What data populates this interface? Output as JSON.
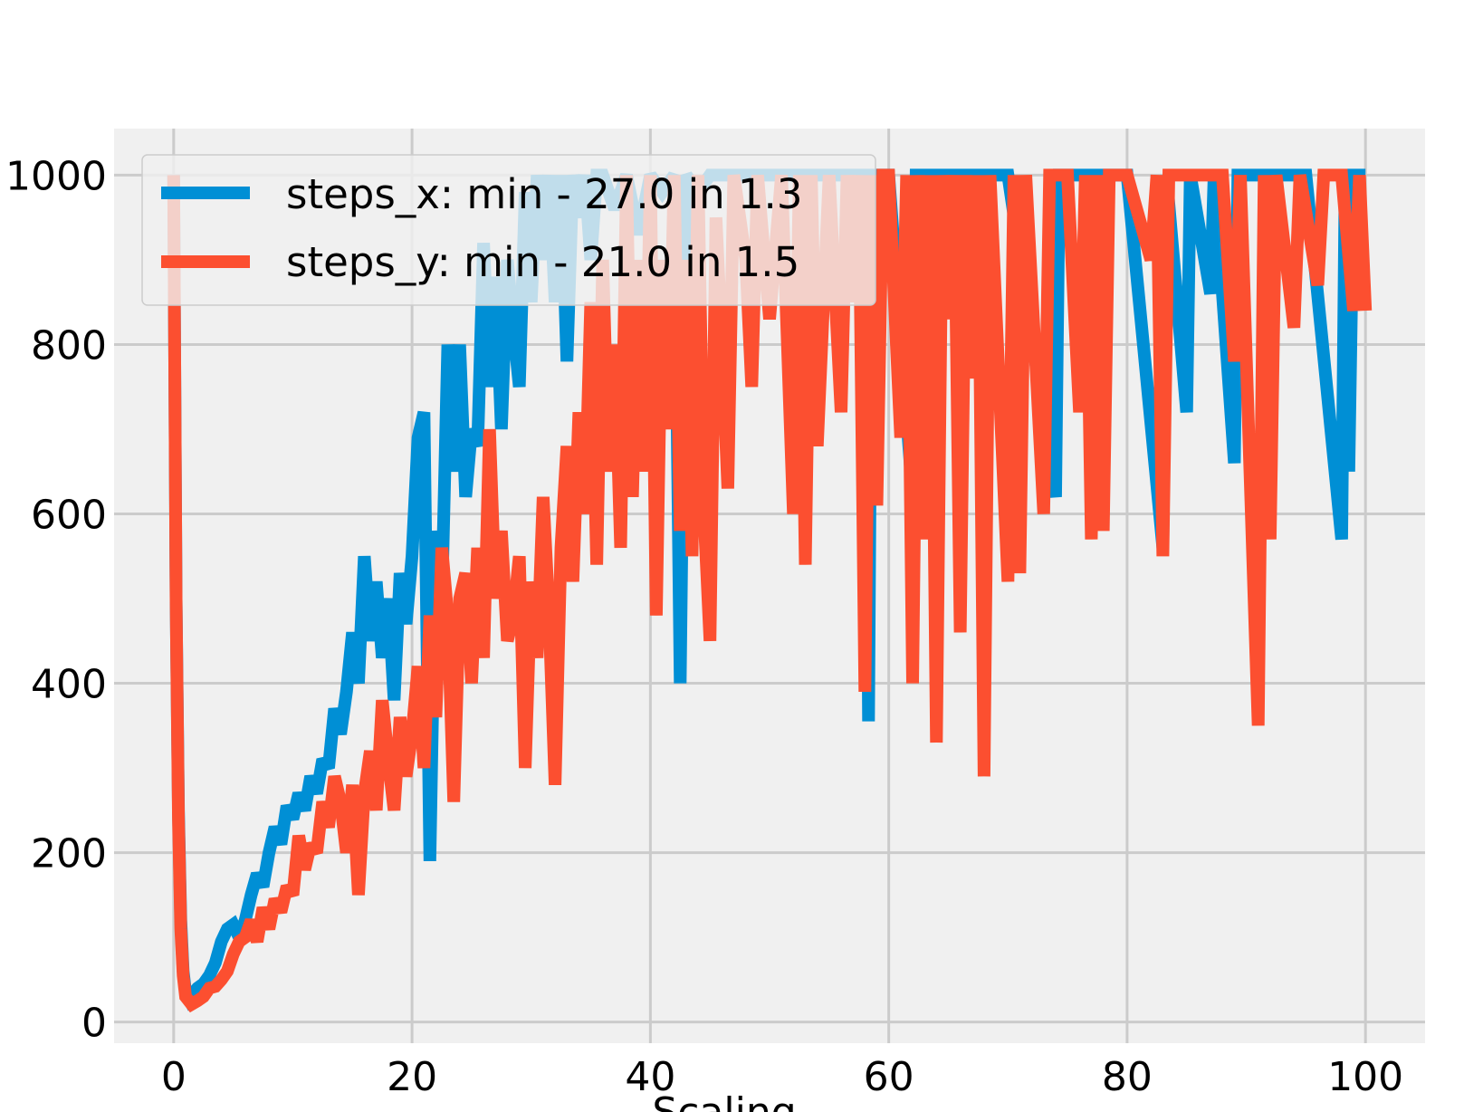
{
  "chart_data": {
    "type": "line",
    "title": "",
    "xlabel": "Scaling",
    "ylabel": "",
    "xlim": [
      -5,
      105
    ],
    "ylim": [
      -25,
      1055
    ],
    "xticks": [
      0,
      20,
      40,
      60,
      80,
      100
    ],
    "yticks": [
      0,
      200,
      400,
      600,
      800,
      1000
    ],
    "xtick_labels": [
      "0",
      "20",
      "40",
      "60",
      "80",
      "100"
    ],
    "ytick_labels": [
      "0",
      "200",
      "400",
      "600",
      "800",
      "1000"
    ],
    "grid": true,
    "legend_position": "top-left",
    "colors": {
      "steps_x": "#008fd5",
      "steps_y": "#fc4f30",
      "background": "#f0f0f0",
      "grid": "#cbcbcb"
    },
    "series": [
      {
        "name": "steps_x: min - 27.0 in 1.3",
        "points": [
          [
            0,
            1000
          ],
          [
            0.2,
            500
          ],
          [
            0.4,
            250
          ],
          [
            0.6,
            120
          ],
          [
            0.8,
            60
          ],
          [
            1.0,
            35
          ],
          [
            1.3,
            27
          ],
          [
            2,
            40
          ],
          [
            2.5,
            45
          ],
          [
            3,
            55
          ],
          [
            3.5,
            70
          ],
          [
            4,
            95
          ],
          [
            4.5,
            110
          ],
          [
            5,
            115
          ],
          [
            5.5,
            100
          ],
          [
            6,
            120
          ],
          [
            6.5,
            150
          ],
          [
            7,
            175
          ],
          [
            7.5,
            160
          ],
          [
            8,
            200
          ],
          [
            8.5,
            230
          ],
          [
            9,
            210
          ],
          [
            9.5,
            255
          ],
          [
            10,
            240
          ],
          [
            10.5,
            270
          ],
          [
            11,
            250
          ],
          [
            11.5,
            290
          ],
          [
            12,
            270
          ],
          [
            12.5,
            310
          ],
          [
            13,
            300
          ],
          [
            13.5,
            370
          ],
          [
            14,
            340
          ],
          [
            14.5,
            390
          ],
          [
            15,
            460
          ],
          [
            15.5,
            400
          ],
          [
            16,
            550
          ],
          [
            16.5,
            450
          ],
          [
            17,
            520
          ],
          [
            17.5,
            430
          ],
          [
            18,
            500
          ],
          [
            18.5,
            380
          ],
          [
            19,
            530
          ],
          [
            19.5,
            470
          ],
          [
            20,
            550
          ],
          [
            20.5,
            690
          ],
          [
            21,
            720
          ],
          [
            21.5,
            190
          ],
          [
            22,
            580
          ],
          [
            22.5,
            500
          ],
          [
            23,
            800
          ],
          [
            23.5,
            650
          ],
          [
            24,
            800
          ],
          [
            24.5,
            620
          ],
          [
            25,
            700
          ],
          [
            25.5,
            680
          ],
          [
            26,
            920
          ],
          [
            26.5,
            750
          ],
          [
            27,
            880
          ],
          [
            27.5,
            700
          ],
          [
            28,
            900
          ],
          [
            28.5,
            820
          ],
          [
            29,
            750
          ],
          [
            29.5,
            980
          ],
          [
            30,
            850
          ],
          [
            30.5,
            1000
          ],
          [
            31,
            900
          ],
          [
            31.5,
            1000
          ],
          [
            32,
            850
          ],
          [
            32.5,
            1000
          ],
          [
            33,
            780
          ],
          [
            33.5,
            1000
          ],
          [
            34,
            950
          ],
          [
            34.5,
            1000
          ],
          [
            35,
            900
          ],
          [
            35.5,
            1000
          ],
          [
            36,
            1000
          ],
          [
            37,
            960
          ],
          [
            38,
            1000
          ],
          [
            39,
            930
          ],
          [
            40,
            1000
          ],
          [
            41,
            980
          ],
          [
            42,
            1000
          ],
          [
            42.5,
            400
          ],
          [
            43,
            1000
          ],
          [
            44,
            980
          ],
          [
            45,
            1000
          ],
          [
            50,
            1000
          ],
          [
            55,
            1000
          ],
          [
            58,
            1000
          ],
          [
            58.3,
            355
          ],
          [
            58.6,
            1000
          ],
          [
            60,
            1000
          ],
          [
            62,
            620
          ],
          [
            62.3,
            1000
          ],
          [
            65,
            1000
          ],
          [
            70,
            1000
          ],
          [
            74,
            620
          ],
          [
            74.3,
            1000
          ],
          [
            80,
            1000
          ],
          [
            83,
            560
          ],
          [
            83.3,
            1000
          ],
          [
            85,
            720
          ],
          [
            85.3,
            1000
          ],
          [
            87,
            860
          ],
          [
            87.3,
            1000
          ],
          [
            89,
            660
          ],
          [
            89.3,
            1000
          ],
          [
            92,
            1000
          ],
          [
            95,
            1000
          ],
          [
            98,
            570
          ],
          [
            98.3,
            1000
          ],
          [
            98.6,
            650
          ],
          [
            99,
            1000
          ],
          [
            100,
            1000
          ]
        ]
      },
      {
        "name": "steps_y: min - 21.0 in 1.5",
        "points": [
          [
            0,
            1000
          ],
          [
            0.2,
            500
          ],
          [
            0.4,
            240
          ],
          [
            0.6,
            110
          ],
          [
            0.8,
            55
          ],
          [
            1.0,
            30
          ],
          [
            1.5,
            21
          ],
          [
            2,
            25
          ],
          [
            2.5,
            30
          ],
          [
            3,
            40
          ],
          [
            3.5,
            42
          ],
          [
            4,
            50
          ],
          [
            4.5,
            60
          ],
          [
            5,
            80
          ],
          [
            5.5,
            95
          ],
          [
            6,
            100
          ],
          [
            6.5,
            120
          ],
          [
            7,
            95
          ],
          [
            7.5,
            135
          ],
          [
            8,
            110
          ],
          [
            8.5,
            145
          ],
          [
            9,
            130
          ],
          [
            9.5,
            160
          ],
          [
            10,
            150
          ],
          [
            10.5,
            220
          ],
          [
            11,
            180
          ],
          [
            11.5,
            210
          ],
          [
            12,
            200
          ],
          [
            12.5,
            260
          ],
          [
            13,
            230
          ],
          [
            13.5,
            290
          ],
          [
            14,
            260
          ],
          [
            14.5,
            200
          ],
          [
            15,
            280
          ],
          [
            15.5,
            150
          ],
          [
            16,
            270
          ],
          [
            16.5,
            320
          ],
          [
            17,
            250
          ],
          [
            17.5,
            380
          ],
          [
            18,
            310
          ],
          [
            18.5,
            250
          ],
          [
            19,
            360
          ],
          [
            19.5,
            290
          ],
          [
            20,
            340
          ],
          [
            20.5,
            420
          ],
          [
            21,
            300
          ],
          [
            21.5,
            480
          ],
          [
            22,
            360
          ],
          [
            22.5,
            560
          ],
          [
            23,
            480
          ],
          [
            23.5,
            260
          ],
          [
            24,
            500
          ],
          [
            24.5,
            530
          ],
          [
            25,
            400
          ],
          [
            25.5,
            560
          ],
          [
            26,
            430
          ],
          [
            26.5,
            700
          ],
          [
            27,
            500
          ],
          [
            27.5,
            580
          ],
          [
            28,
            450
          ],
          [
            28.5,
            480
          ],
          [
            29,
            550
          ],
          [
            29.5,
            300
          ],
          [
            30,
            520
          ],
          [
            30.5,
            430
          ],
          [
            31,
            620
          ],
          [
            31.5,
            480
          ],
          [
            32,
            280
          ],
          [
            32.5,
            560
          ],
          [
            33,
            680
          ],
          [
            33.5,
            520
          ],
          [
            34,
            720
          ],
          [
            34.5,
            600
          ],
          [
            35,
            850
          ],
          [
            35.5,
            540
          ],
          [
            36,
            900
          ],
          [
            36.5,
            650
          ],
          [
            37,
            800
          ],
          [
            37.5,
            560
          ],
          [
            38,
            1000
          ],
          [
            38.5,
            620
          ],
          [
            39,
            900
          ],
          [
            39.5,
            650
          ],
          [
            40,
            1000
          ],
          [
            40.5,
            480
          ],
          [
            41,
            900
          ],
          [
            41.5,
            700
          ],
          [
            42,
            1000
          ],
          [
            42.5,
            580
          ],
          [
            43,
            900
          ],
          [
            43.5,
            550
          ],
          [
            44,
            1000
          ],
          [
            44.5,
            600
          ],
          [
            45,
            450
          ],
          [
            45.5,
            950
          ],
          [
            46,
            800
          ],
          [
            46.5,
            630
          ],
          [
            47,
            1000
          ],
          [
            48,
            900
          ],
          [
            48.5,
            750
          ],
          [
            49,
            1000
          ],
          [
            50,
            830
          ],
          [
            51,
            1000
          ],
          [
            52,
            600
          ],
          [
            52.5,
            1000
          ],
          [
            53,
            540
          ],
          [
            53.5,
            1000
          ],
          [
            54,
            680
          ],
          [
            55,
            1000
          ],
          [
            56,
            720
          ],
          [
            56.5,
            1000
          ],
          [
            57,
            850
          ],
          [
            57.5,
            1000
          ],
          [
            58,
            390
          ],
          [
            58.5,
            1000
          ],
          [
            59,
            610
          ],
          [
            59.5,
            1000
          ],
          [
            60,
            1000
          ],
          [
            61,
            690
          ],
          [
            61.5,
            1000
          ],
          [
            62,
            400
          ],
          [
            62.5,
            1000
          ],
          [
            63,
            570
          ],
          [
            63.5,
            1000
          ],
          [
            64,
            330
          ],
          [
            64.5,
            1000
          ],
          [
            65,
            830
          ],
          [
            65.5,
            1000
          ],
          [
            66,
            460
          ],
          [
            66.5,
            1000
          ],
          [
            67,
            760
          ],
          [
            67.5,
            1000
          ],
          [
            68,
            290
          ],
          [
            68.5,
            1000
          ],
          [
            70,
            520
          ],
          [
            70.5,
            1000
          ],
          [
            71,
            530
          ],
          [
            71.5,
            1000
          ],
          [
            73,
            600
          ],
          [
            73.5,
            1000
          ],
          [
            75,
            1000
          ],
          [
            76,
            720
          ],
          [
            76.5,
            1000
          ],
          [
            77,
            570
          ],
          [
            77.5,
            1000
          ],
          [
            78,
            580
          ],
          [
            78.5,
            1000
          ],
          [
            80,
            1000
          ],
          [
            82,
            900
          ],
          [
            82.5,
            1000
          ],
          [
            83,
            550
          ],
          [
            83.5,
            1000
          ],
          [
            85,
            1000
          ],
          [
            88,
            1000
          ],
          [
            89,
            780
          ],
          [
            89.5,
            1000
          ],
          [
            91,
            350
          ],
          [
            91.5,
            1000
          ],
          [
            92,
            570
          ],
          [
            92.5,
            1000
          ],
          [
            94,
            820
          ],
          [
            94.5,
            1000
          ],
          [
            96,
            870
          ],
          [
            96.5,
            1000
          ],
          [
            98,
            1000
          ],
          [
            99,
            840
          ],
          [
            99.5,
            1000
          ],
          [
            100,
            840
          ]
        ]
      }
    ]
  }
}
